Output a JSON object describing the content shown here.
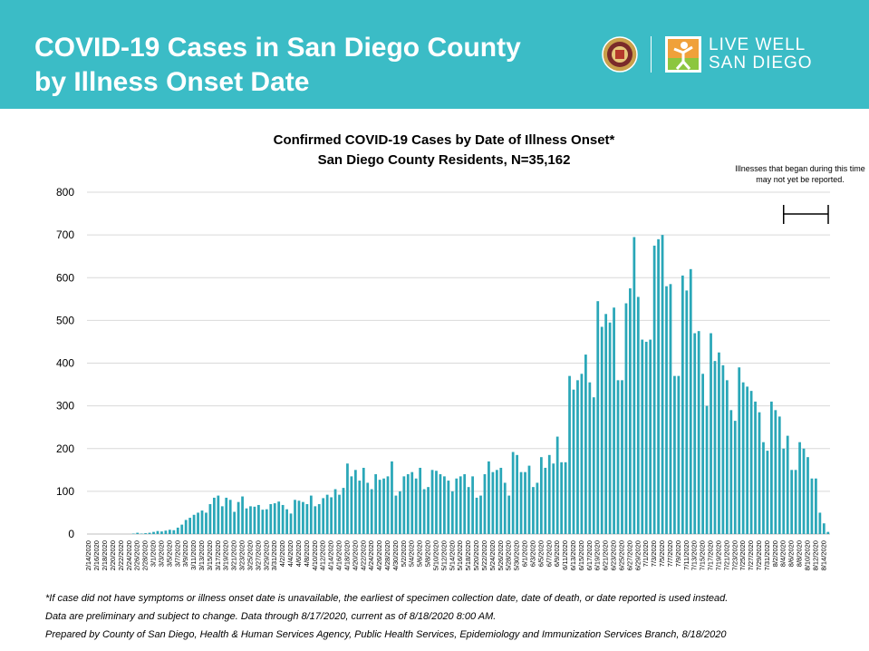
{
  "header": {
    "title_line1": "COVID-19 Cases in San Diego County",
    "title_line2": "by Illness Onset Date",
    "brand_line1": "LIVE WELL",
    "brand_line2": "SAN DIEGO"
  },
  "note": {
    "text": "Illnesses that began during this time may not yet be reported."
  },
  "footnotes": {
    "line1": "*If case did not have symptoms or illness onset date is unavailable, the earliest of specimen collection date, date of death, or date reported is used instead.",
    "line2": "Data are preliminary and subject to change. Data through 8/17/2020, current as of 8/18/2020 8:00 AM.",
    "line3": "Prepared by County of San Diego, Health & Human Services Agency, Public Health Services, Epidemiology and Immunization Services Branch, 8/18/2020"
  },
  "colors": {
    "header_bg": "#3bbcc6",
    "bar": "#2aa7b8",
    "brand_orange": "#f0a13a"
  },
  "chart_data": {
    "type": "bar",
    "title": "Confirmed COVID-19 Cases by Date of Illness Onset*",
    "subtitle": "San Diego County Residents, N=35,162",
    "ylim": [
      0,
      800
    ],
    "yticks": [
      0,
      100,
      200,
      300,
      400,
      500,
      600,
      700,
      800
    ],
    "grid": true,
    "start_date": "2/14/2020",
    "end_date": "8/16/2020",
    "labeled_every_days": 2,
    "unreported_period": [
      "8/4/2020",
      "8/17/2020"
    ],
    "values": [
      0,
      0,
      0,
      0,
      0,
      0,
      0,
      0,
      0,
      0,
      0,
      1,
      3,
      1,
      2,
      3,
      5,
      7,
      6,
      8,
      10,
      9,
      15,
      22,
      33,
      38,
      45,
      50,
      55,
      50,
      70,
      85,
      90,
      65,
      85,
      80,
      52,
      75,
      88,
      60,
      65,
      64,
      68,
      57,
      58,
      70,
      72,
      76,
      68,
      58,
      48,
      80,
      78,
      75,
      70,
      90,
      65,
      70,
      84,
      92,
      86,
      105,
      92,
      108,
      165,
      135,
      150,
      125,
      155,
      120,
      105,
      140,
      127,
      130,
      135,
      170,
      90,
      100,
      135,
      140,
      145,
      130,
      155,
      105,
      110,
      150,
      148,
      140,
      135,
      125,
      100,
      130,
      135,
      140,
      110,
      135,
      85,
      90,
      140,
      170,
      145,
      150,
      155,
      120,
      90,
      192,
      185,
      145,
      145,
      160,
      110,
      120,
      180,
      155,
      185,
      165,
      228,
      168,
      168,
      370,
      338,
      360,
      375,
      420,
      355,
      320,
      545,
      485,
      515,
      495,
      530,
      360,
      360,
      540,
      575,
      695,
      555,
      455,
      450,
      455,
      675,
      690,
      700,
      580,
      585,
      370,
      370,
      605,
      570,
      620,
      470,
      475,
      375,
      300,
      470,
      405,
      425,
      395,
      360,
      290,
      265,
      390,
      355,
      345,
      335,
      310,
      285,
      215,
      195,
      310,
      290,
      275,
      200,
      230,
      150,
      150,
      215,
      200,
      180,
      130,
      130,
      50,
      25,
      5
    ]
  }
}
